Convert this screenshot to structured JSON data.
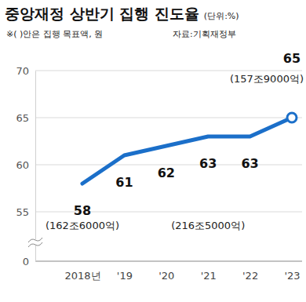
{
  "chart_data": {
    "type": "line",
    "title": "중앙재정 상반기 집행 진도율",
    "subtitle": "(단위:%)",
    "note": "※( )안은 집행 목표액, 원",
    "source": "자료:기획재정부",
    "categories": [
      "2018년",
      "'19",
      "'20",
      "'21",
      "'22",
      "'23"
    ],
    "values": [
      58,
      61,
      62,
      63,
      63,
      65
    ],
    "color": "#1b6fc9",
    "ylim": [
      0,
      70
    ],
    "yticks": [
      0,
      55,
      60,
      65,
      70
    ],
    "grid": true,
    "data_labels": true,
    "annotations": [
      {
        "category": "2018년",
        "text": "(162조6000억)"
      },
      {
        "category": "'21",
        "text": "(216조5000억)"
      },
      {
        "category": "'23",
        "text": "(157조9000억)"
      }
    ]
  }
}
